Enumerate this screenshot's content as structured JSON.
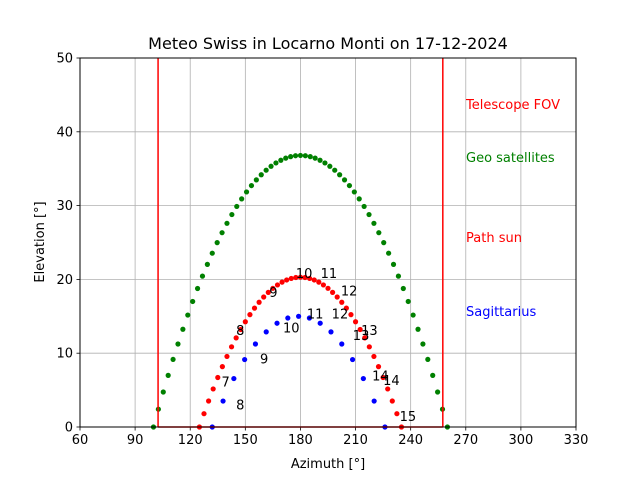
{
  "chart_data": {
    "type": "scatter",
    "title": "Meteo Swiss in Locarno Monti on 17-12-2024",
    "xlabel": "Azimuth [°]",
    "ylabel": "Elevation [°]",
    "xlim": [
      60,
      330
    ],
    "ylim": [
      0,
      50
    ],
    "xticks": [
      60,
      90,
      120,
      150,
      180,
      210,
      240,
      270,
      300,
      330
    ],
    "yticks": [
      0,
      10,
      20,
      30,
      40,
      50
    ],
    "grid": true,
    "fov_lines": [
      102.5,
      257.5
    ],
    "fov_color": "#ff0000",
    "series": [
      {
        "name": "Geo satellites",
        "color": "#008000",
        "arc": {
          "az_start": 100,
          "az_end": 260,
          "peak": 36.8,
          "n": 61
        }
      },
      {
        "name": "Path sun",
        "color": "#ff0000",
        "arc": {
          "az_start": 125,
          "az_end": 235,
          "peak": 20.3,
          "n": 45
        }
      },
      {
        "name": "Sagittarius",
        "color": "#0000ff",
        "arc": {
          "az_start": 132,
          "az_end": 226,
          "peak": 15.0,
          "n": 17
        }
      }
    ],
    "legend_labels": [
      {
        "text": "Telescope FOV",
        "color": "#ff0000"
      },
      {
        "text": "Geo satellites",
        "color": "#008000"
      },
      {
        "text": "Path sun",
        "color": "#ff0000"
      },
      {
        "text": "Sagittarius",
        "color": "#0000ff"
      }
    ],
    "annotations": [
      {
        "text": "7",
        "x": 137,
        "y": 5.5
      },
      {
        "text": "8",
        "x": 145,
        "y": 12.5
      },
      {
        "text": "9",
        "x": 163,
        "y": 17.6
      },
      {
        "text": "10",
        "x": 177.5,
        "y": 20.2
      },
      {
        "text": "11",
        "x": 191,
        "y": 20.2
      },
      {
        "text": "12",
        "x": 202,
        "y": 17.8
      },
      {
        "text": "13",
        "x": 213,
        "y": 12.5
      },
      {
        "text": "14",
        "x": 225,
        "y": 5.7
      },
      {
        "text": "15",
        "x": 234,
        "y": 0.8
      },
      {
        "text": "8",
        "x": 145,
        "y": 2.4
      },
      {
        "text": "9",
        "x": 158,
        "y": 8.6
      },
      {
        "text": "10",
        "x": 170.5,
        "y": 12.8
      },
      {
        "text": "11",
        "x": 183.5,
        "y": 14.7
      },
      {
        "text": "12",
        "x": 197,
        "y": 14.7
      },
      {
        "text": "13",
        "x": 208.5,
        "y": 11.8
      },
      {
        "text": "14",
        "x": 219,
        "y": 6.3
      }
    ]
  }
}
